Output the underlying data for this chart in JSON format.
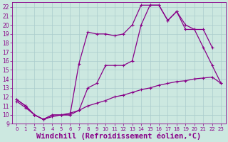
{
  "background_color": "#cce8e0",
  "grid_color": "#aacccc",
  "line_color": "#880088",
  "xlabel": "Windchill (Refroidissement éolien,°C)",
  "xlabel_fontsize": 7.5,
  "xlim_min": -0.5,
  "xlim_max": 23.5,
  "ylim_min": 9,
  "ylim_max": 22.5,
  "yticks": [
    9,
    10,
    11,
    12,
    13,
    14,
    15,
    16,
    17,
    18,
    19,
    20,
    21,
    22
  ],
  "xticks": [
    0,
    1,
    2,
    3,
    4,
    5,
    6,
    7,
    8,
    9,
    10,
    11,
    12,
    13,
    14,
    15,
    16,
    17,
    18,
    19,
    20,
    21,
    22,
    23
  ],
  "line1_x": [
    0,
    1,
    2,
    3,
    4,
    5,
    6,
    7,
    8,
    9,
    10,
    11,
    12,
    13,
    14,
    15,
    16,
    17,
    18,
    19,
    20,
    21,
    22,
    23
  ],
  "line1_y": [
    11.7,
    11.0,
    10.0,
    9.5,
    10.0,
    10.0,
    10.0,
    10.5,
    13.0,
    13.5,
    15.5,
    15.5,
    15.5,
    16.0,
    20.0,
    22.2,
    22.2,
    20.5,
    21.5,
    20.0,
    19.5,
    17.5,
    15.5,
    13.5
  ],
  "line2_x": [
    0,
    1,
    2,
    3,
    4,
    5,
    6,
    7,
    8,
    9,
    10,
    11,
    12,
    13,
    14,
    15,
    16,
    17,
    18,
    19,
    20,
    21,
    22
  ],
  "line2_y": [
    11.7,
    11.0,
    10.0,
    9.5,
    10.0,
    10.0,
    10.0,
    15.7,
    19.2,
    19.0,
    19.0,
    18.8,
    19.0,
    20.0,
    22.2,
    22.2,
    22.2,
    20.5,
    21.5,
    19.5,
    19.5,
    19.5,
    17.5
  ],
  "line3_x": [
    0,
    1,
    2,
    3,
    4,
    5,
    6,
    7,
    8,
    9,
    10,
    11,
    12,
    13,
    14,
    15,
    16,
    17,
    18,
    19,
    20,
    21,
    22,
    23
  ],
  "line3_y": [
    11.5,
    10.8,
    10.0,
    9.5,
    9.8,
    10.0,
    10.2,
    10.5,
    11.0,
    11.3,
    11.6,
    12.0,
    12.2,
    12.5,
    12.8,
    13.0,
    13.3,
    13.5,
    13.7,
    13.8,
    14.0,
    14.1,
    14.2,
    13.5
  ],
  "marker": "+",
  "markersize": 3.5,
  "linewidth": 0.9
}
